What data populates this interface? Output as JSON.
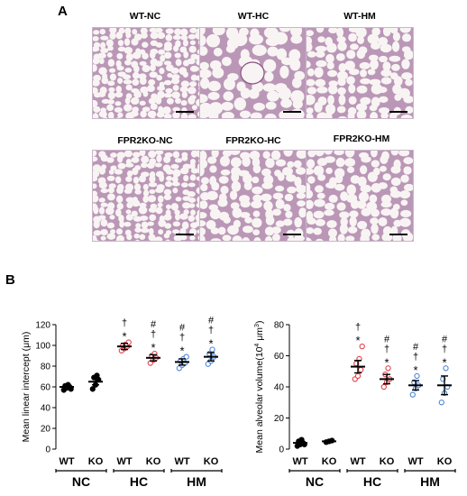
{
  "figure": {
    "panel_a_label": "A",
    "panel_b_label": "B",
    "micrographs": [
      {
        "title": "WT-NC",
        "pattern": "dense"
      },
      {
        "title": "WT-HC",
        "pattern": "large"
      },
      {
        "title": "WT-HM",
        "pattern": "medium"
      },
      {
        "title": "FPR2KO-NC",
        "pattern": "dense"
      },
      {
        "title": "FPR2KO-HC",
        "pattern": "medium"
      },
      {
        "title": "FPR2KO-HM",
        "pattern": "medium"
      }
    ],
    "colors": {
      "tissue": "#8b4f86",
      "lumen": "#f8f4f3",
      "nc_marker": "#000000",
      "hc_marker": "#e0404a",
      "hm_marker": "#4f86d6",
      "error_bar": "#000000"
    }
  },
  "chart_data": [
    {
      "type": "scatter",
      "title": "",
      "ylabel": "Mean linear intercept (μm)",
      "ylabel_main": "Mean linear intercept (",
      "ylabel_unit": "μm",
      "ylabel_close": ")",
      "ylim": [
        0,
        120
      ],
      "yticks": [
        "0",
        "20",
        "40",
        "60",
        "80",
        "100",
        "120"
      ],
      "ytick_values": [
        0,
        20,
        40,
        60,
        80,
        100,
        120
      ],
      "categories": [
        "WT",
        "KO",
        "WT",
        "KO",
        "WT",
        "KO"
      ],
      "groups": [
        "NC",
        "HC",
        "HM"
      ],
      "means": [
        60,
        65,
        99,
        88,
        84,
        89
      ],
      "sem": [
        2,
        3,
        3,
        3,
        3,
        4
      ],
      "points": [
        [
          57,
          59,
          60,
          61,
          62,
          58
        ],
        [
          58,
          62,
          67,
          69,
          71
        ],
        [
          95,
          97,
          99,
          100,
          101,
          103
        ],
        [
          83,
          86,
          88,
          90,
          92
        ],
        [
          78,
          81,
          83,
          85,
          87,
          89
        ],
        [
          82,
          85,
          89,
          92,
          96
        ]
      ],
      "annotations": [
        [],
        [],
        [
          "†",
          "*"
        ],
        [
          "#",
          "†",
          "*"
        ],
        [
          "#",
          "†",
          "*"
        ],
        [
          "#",
          "†",
          "*"
        ]
      ]
    },
    {
      "type": "scatter",
      "title": "",
      "ylabel": "Mean alveolar volume(10⁴ μm³)",
      "ylabel_main": "Mean alveolar volume(10",
      "ylabel_exp1": "4",
      "ylabel_unit": " μm",
      "ylabel_exp2": "3",
      "ylabel_close": ")",
      "ylim": [
        0,
        80
      ],
      "yticks": [
        "0",
        "20",
        "40",
        "60",
        "80"
      ],
      "ytick_values": [
        0,
        20,
        40,
        60,
        80
      ],
      "categories": [
        "WT",
        "KO",
        "WT",
        "KO",
        "WT",
        "KO"
      ],
      "groups": [
        "NC",
        "HC",
        "HM"
      ],
      "means": [
        4,
        5,
        53,
        45,
        41,
        41
      ],
      "sem": [
        1,
        0.5,
        4,
        3,
        3,
        6
      ],
      "points": [
        [
          2,
          3,
          4,
          5,
          6,
          3
        ],
        [
          4.5,
          5,
          5.5
        ],
        [
          45,
          47,
          51,
          55,
          58,
          66
        ],
        [
          40,
          43,
          45,
          48,
          52
        ],
        [
          35,
          39,
          41,
          43,
          47
        ],
        [
          30,
          36,
          40,
          45,
          52
        ]
      ],
      "annotations": [
        [],
        [],
        [
          "†",
          "*"
        ],
        [
          "#",
          "†",
          "*"
        ],
        [
          "#",
          "†",
          "*"
        ],
        [
          "#",
          "†",
          "*"
        ]
      ]
    }
  ]
}
